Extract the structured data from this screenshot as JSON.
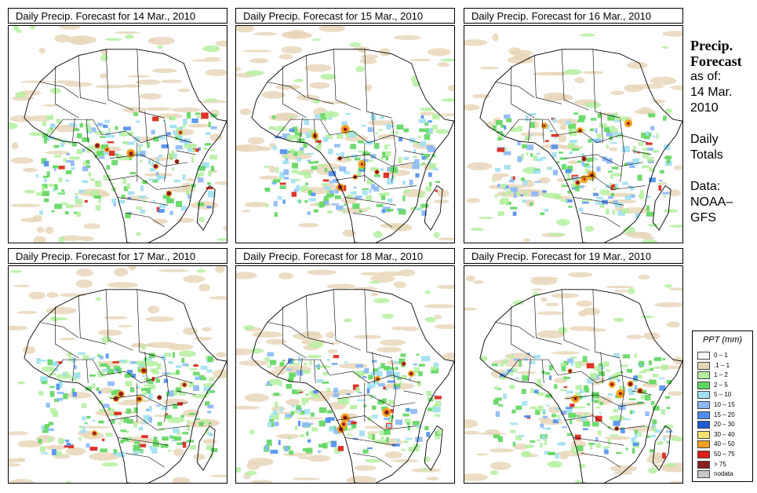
{
  "panels": [
    {
      "title": "Daily Precip. Forecast for  14 Mar., 2010"
    },
    {
      "title": "Daily Precip. Forecast for  15 Mar., 2010"
    },
    {
      "title": "Daily Precip. Forecast for  16 Mar., 2010"
    },
    {
      "title": "Daily Precip. Forecast for  17 Mar., 2010"
    },
    {
      "title": "Daily Precip. Forecast for  18 Mar., 2010"
    },
    {
      "title": "Daily Precip. Forecast for  19 Mar., 2010"
    }
  ],
  "sidebar": {
    "heading1": "Precip.",
    "heading2": "Forecast",
    "asof": "as of:",
    "date1": "14 Mar.",
    "date2": "2010",
    "totals1": "Daily",
    "totals2": "Totals",
    "data1": "Data:",
    "data2": "NOAA–",
    "data3": "GFS"
  },
  "legend": {
    "title": "PPT (mm)",
    "items": [
      {
        "label": "0 – 1",
        "color": "#ffffff"
      },
      {
        "label": ".1 – 1",
        "color": "#e8d6b8"
      },
      {
        "label": "1 – 2",
        "color": "#b4f0a0"
      },
      {
        "label": "2 – 5",
        "color": "#5fd65f"
      },
      {
        "label": "5 – 10",
        "color": "#9ee0f0"
      },
      {
        "label": "10 – 15",
        "color": "#8ab8f8"
      },
      {
        "label": "15 – 20",
        "color": "#4d8ef0"
      },
      {
        "label": "20 – 30",
        "color": "#1e5ad2"
      },
      {
        "label": "30 – 40",
        "color": "#f5e170"
      },
      {
        "label": "40 – 50",
        "color": "#f5a020"
      },
      {
        "label": "50 – 75",
        "color": "#dc1e14"
      },
      {
        "label": "> 75",
        "color": "#8c1e1e"
      },
      {
        "label": "nodata",
        "color": "#c8c8c8"
      }
    ]
  }
}
